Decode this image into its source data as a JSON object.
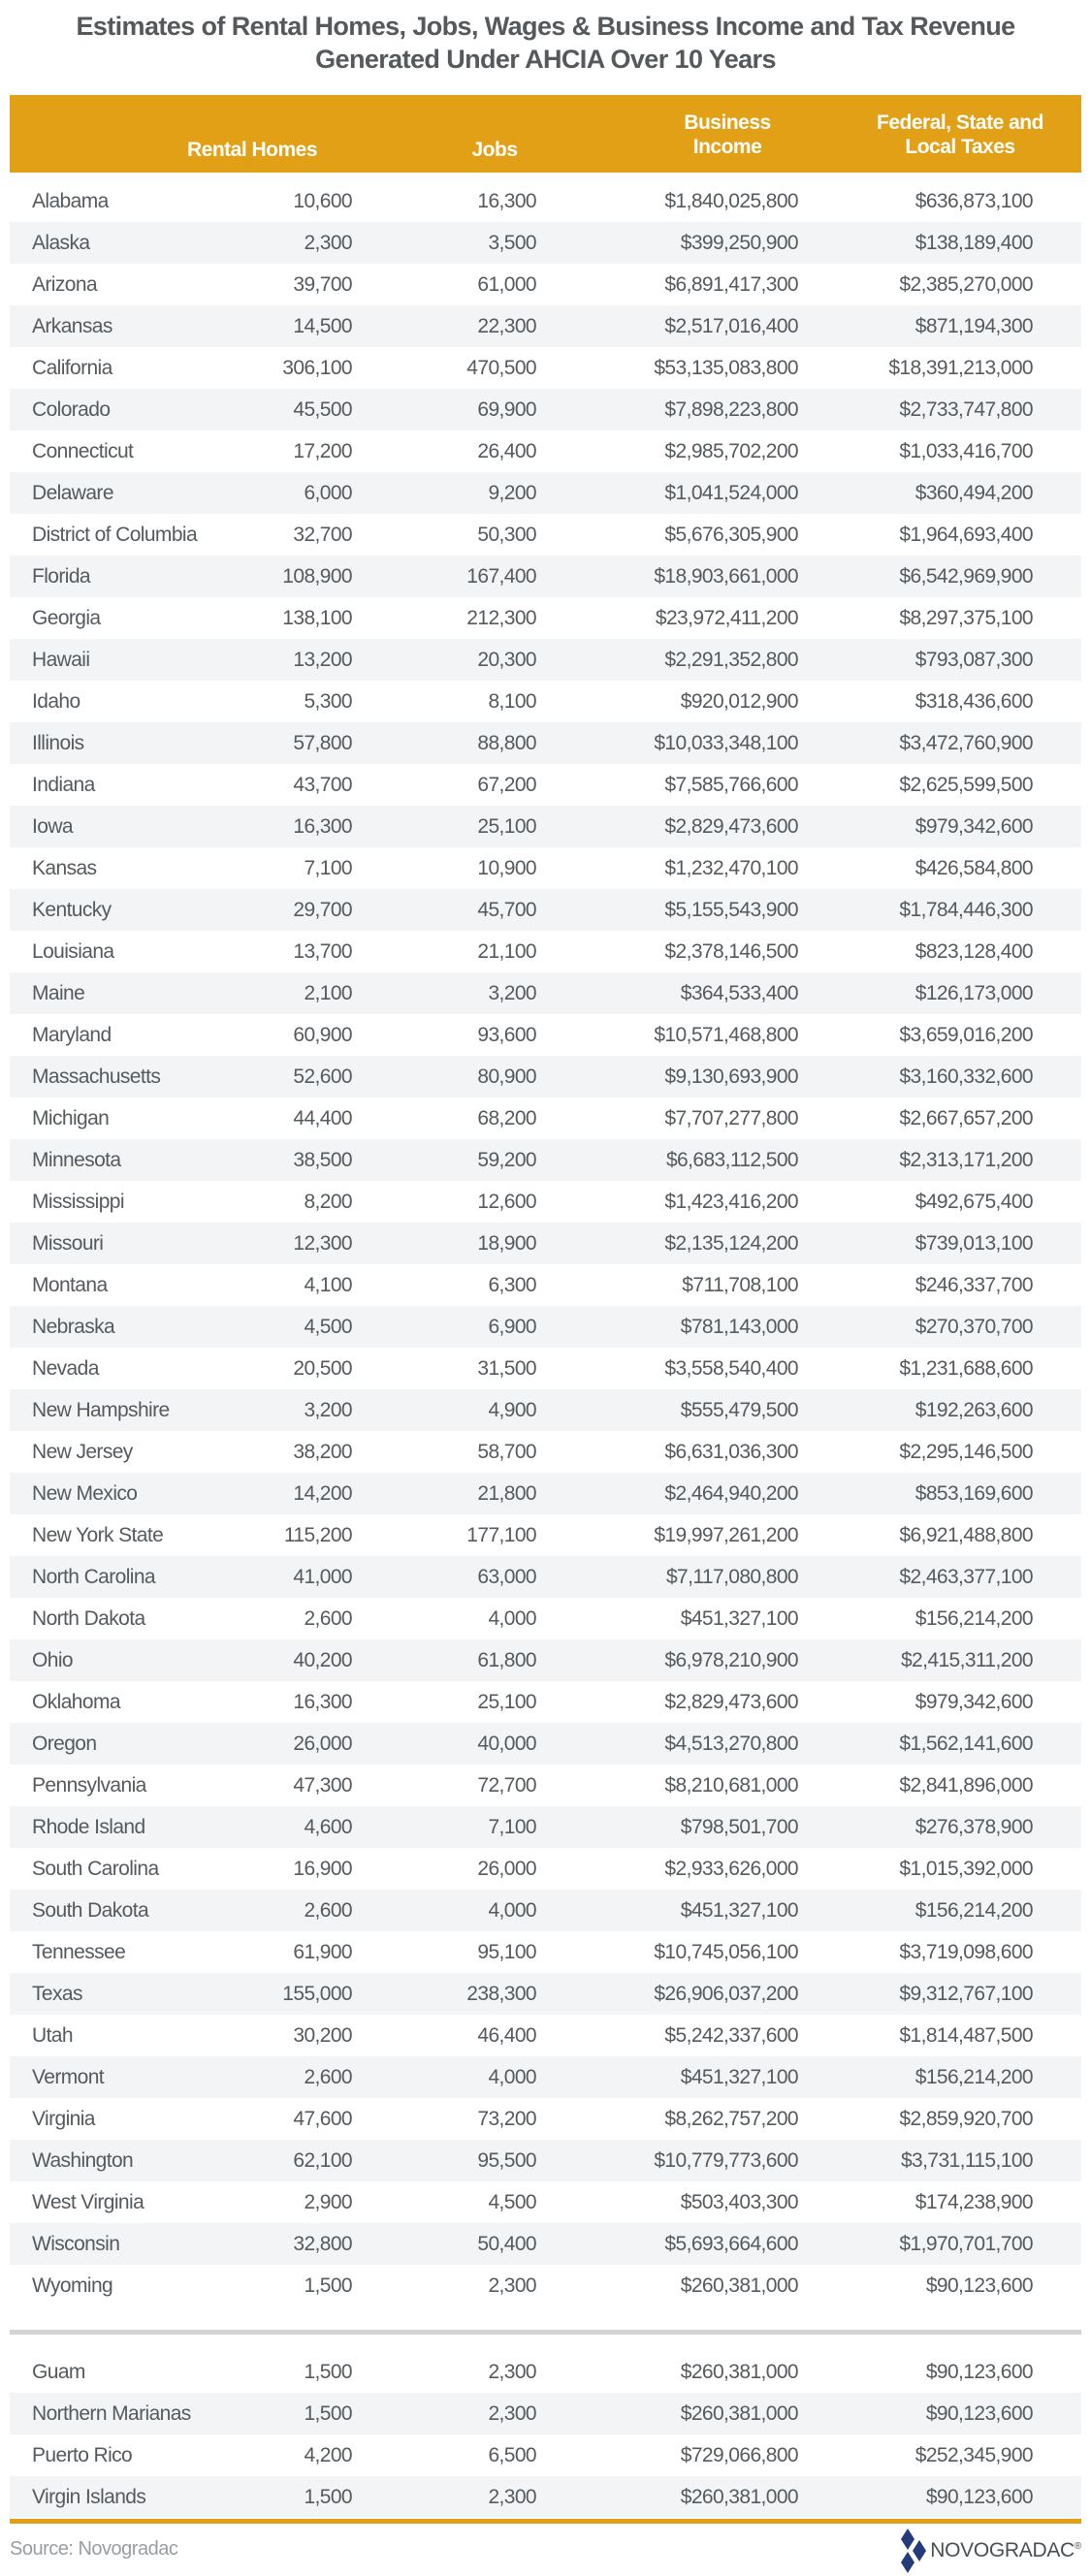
{
  "title": {
    "line1": "Estimates of Rental Homes, Jobs, Wages & Business Income and Tax Revenue",
    "line2": "Generated Under AHCIA Over 10 Years"
  },
  "columns": {
    "rental_homes": "Rental Homes",
    "jobs": "Jobs",
    "business_income_1": "Business",
    "business_income_2": "Income",
    "taxes_1": "Federal, State and",
    "taxes_2": "Local Taxes"
  },
  "states": [
    [
      "Alabama",
      "10,600",
      "16,300",
      "$1,840,025,800",
      "$636,873,100"
    ],
    [
      "Alaska",
      "2,300",
      "3,500",
      "$399,250,900",
      "$138,189,400"
    ],
    [
      "Arizona",
      "39,700",
      "61,000",
      "$6,891,417,300",
      "$2,385,270,000"
    ],
    [
      "Arkansas",
      "14,500",
      "22,300",
      "$2,517,016,400",
      "$871,194,300"
    ],
    [
      "California",
      "306,100",
      "470,500",
      "$53,135,083,800",
      "$18,391,213,000"
    ],
    [
      "Colorado",
      "45,500",
      "69,900",
      "$7,898,223,800",
      "$2,733,747,800"
    ],
    [
      "Connecticut",
      "17,200",
      "26,400",
      "$2,985,702,200",
      "$1,033,416,700"
    ],
    [
      "Delaware",
      "6,000",
      "9,200",
      "$1,041,524,000",
      "$360,494,200"
    ],
    [
      "District of Columbia",
      "32,700",
      "50,300",
      "$5,676,305,900",
      "$1,964,693,400"
    ],
    [
      "Florida",
      "108,900",
      "167,400",
      "$18,903,661,000",
      "$6,542,969,900"
    ],
    [
      "Georgia",
      "138,100",
      "212,300",
      "$23,972,411,200",
      "$8,297,375,100"
    ],
    [
      "Hawaii",
      "13,200",
      "20,300",
      "$2,291,352,800",
      "$793,087,300"
    ],
    [
      "Idaho",
      "5,300",
      "8,100",
      "$920,012,900",
      "$318,436,600"
    ],
    [
      "Illinois",
      "57,800",
      "88,800",
      "$10,033,348,100",
      "$3,472,760,900"
    ],
    [
      "Indiana",
      "43,700",
      "67,200",
      "$7,585,766,600",
      "$2,625,599,500"
    ],
    [
      "Iowa",
      "16,300",
      "25,100",
      "$2,829,473,600",
      "$979,342,600"
    ],
    [
      "Kansas",
      "7,100",
      "10,900",
      "$1,232,470,100",
      "$426,584,800"
    ],
    [
      "Kentucky",
      "29,700",
      "45,700",
      "$5,155,543,900",
      "$1,784,446,300"
    ],
    [
      "Louisiana",
      "13,700",
      "21,100",
      "$2,378,146,500",
      "$823,128,400"
    ],
    [
      "Maine",
      "2,100",
      "3,200",
      "$364,533,400",
      "$126,173,000"
    ],
    [
      "Maryland",
      "60,900",
      "93,600",
      "$10,571,468,800",
      "$3,659,016,200"
    ],
    [
      "Massachusetts",
      "52,600",
      "80,900",
      "$9,130,693,900",
      "$3,160,332,600"
    ],
    [
      "Michigan",
      "44,400",
      "68,200",
      "$7,707,277,800",
      "$2,667,657,200"
    ],
    [
      "Minnesota",
      "38,500",
      "59,200",
      "$6,683,112,500",
      "$2,313,171,200"
    ],
    [
      "Mississippi",
      "8,200",
      "12,600",
      "$1,423,416,200",
      "$492,675,400"
    ],
    [
      "Missouri",
      "12,300",
      "18,900",
      "$2,135,124,200",
      "$739,013,100"
    ],
    [
      "Montana",
      "4,100",
      "6,300",
      "$711,708,100",
      "$246,337,700"
    ],
    [
      "Nebraska",
      "4,500",
      "6,900",
      "$781,143,000",
      "$270,370,700"
    ],
    [
      "Nevada",
      "20,500",
      "31,500",
      "$3,558,540,400",
      "$1,231,688,600"
    ],
    [
      "New Hampshire",
      "3,200",
      "4,900",
      "$555,479,500",
      "$192,263,600"
    ],
    [
      "New Jersey",
      "38,200",
      "58,700",
      "$6,631,036,300",
      "$2,295,146,500"
    ],
    [
      "New Mexico",
      "14,200",
      "21,800",
      "$2,464,940,200",
      "$853,169,600"
    ],
    [
      "New York State",
      "115,200",
      "177,100",
      "$19,997,261,200",
      "$6,921,488,800"
    ],
    [
      "North Carolina",
      "41,000",
      "63,000",
      "$7,117,080,800",
      "$2,463,377,100"
    ],
    [
      "North Dakota",
      "2,600",
      "4,000",
      "$451,327,100",
      "$156,214,200"
    ],
    [
      "Ohio",
      "40,200",
      "61,800",
      "$6,978,210,900",
      "$2,415,311,200"
    ],
    [
      "Oklahoma",
      "16,300",
      "25,100",
      "$2,829,473,600",
      "$979,342,600"
    ],
    [
      "Oregon",
      "26,000",
      "40,000",
      "$4,513,270,800",
      "$1,562,141,600"
    ],
    [
      "Pennsylvania",
      "47,300",
      "72,700",
      "$8,210,681,000",
      "$2,841,896,000"
    ],
    [
      "Rhode Island",
      "4,600",
      "7,100",
      "$798,501,700",
      "$276,378,900"
    ],
    [
      "South Carolina",
      "16,900",
      "26,000",
      "$2,933,626,000",
      "$1,015,392,000"
    ],
    [
      "South Dakota",
      "2,600",
      "4,000",
      "$451,327,100",
      "$156,214,200"
    ],
    [
      "Tennessee",
      "61,900",
      "95,100",
      "$10,745,056,100",
      "$3,719,098,600"
    ],
    [
      "Texas",
      "155,000",
      "238,300",
      "$26,906,037,200",
      "$9,312,767,100"
    ],
    [
      "Utah",
      "30,200",
      "46,400",
      "$5,242,337,600",
      "$1,814,487,500"
    ],
    [
      "Vermont",
      "2,600",
      "4,000",
      "$451,327,100",
      "$156,214,200"
    ],
    [
      "Virginia",
      "47,600",
      "73,200",
      "$8,262,757,200",
      "$2,859,920,700"
    ],
    [
      "Washington",
      "62,100",
      "95,500",
      "$10,779,773,600",
      "$3,731,115,100"
    ],
    [
      "West Virginia",
      "2,900",
      "4,500",
      "$503,403,300",
      "$174,238,900"
    ],
    [
      "Wisconsin",
      "32,800",
      "50,400",
      "$5,693,664,600",
      "$1,970,701,700"
    ],
    [
      "Wyoming",
      "1,500",
      "2,300",
      "$260,381,000",
      "$90,123,600"
    ]
  ],
  "territories": [
    [
      "Guam",
      "1,500",
      "2,300",
      "$260,381,000",
      "$90,123,600"
    ],
    [
      "Northern Marianas",
      "1,500",
      "2,300",
      "$260,381,000",
      "$90,123,600"
    ],
    [
      "Puerto Rico",
      "4,200",
      "6,500",
      "$729,066,800",
      "$252,345,900"
    ],
    [
      "Virgin Islands",
      "1,500",
      "2,300",
      "$260,381,000",
      "$90,123,600"
    ]
  ],
  "footer": {
    "source": "Source: Novogradac",
    "logo_text": "NOVOGRADAC",
    "logo_mark": "®"
  },
  "colors": {
    "accent": "#e2a016",
    "stripe": "#f3f4f6",
    "logo": "#253a7a"
  }
}
